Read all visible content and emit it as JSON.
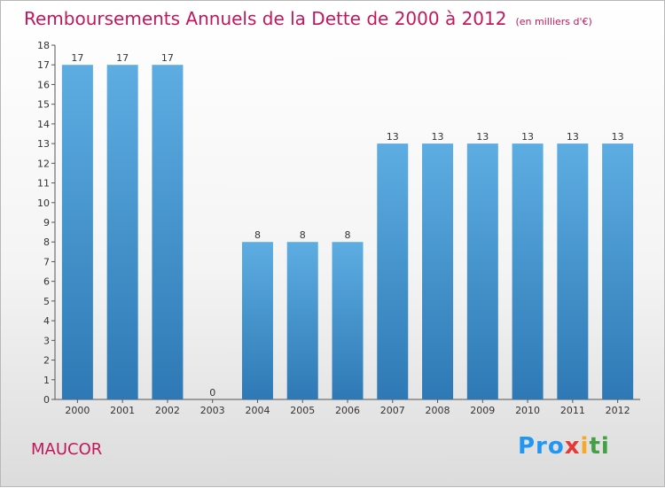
{
  "title": "Remboursements Annuels de la Dette de 2000 à 2012",
  "unit": "(en milliers d'€)",
  "commune": "MAUCOR",
  "brand": [
    "Pro",
    "x",
    "i",
    "ti"
  ],
  "colors": {
    "title": "#c2185b",
    "bar_top": "#5dade2",
    "bar_bottom": "#2e79b5"
  },
  "chart_data": {
    "type": "bar",
    "categories": [
      "2000",
      "2001",
      "2002",
      "2003",
      "2004",
      "2005",
      "2006",
      "2007",
      "2008",
      "2009",
      "2010",
      "2011",
      "2012"
    ],
    "values": [
      17,
      17,
      17,
      0,
      8,
      8,
      8,
      13,
      13,
      13,
      13,
      13,
      13
    ],
    "value_labels": [
      "17",
      "17",
      "17",
      "0",
      "8",
      "8",
      "8",
      "13",
      "13",
      "13",
      "13",
      "13",
      "13"
    ],
    "title": "Remboursements Annuels de la Dette de 2000 à 2012",
    "subtitle": "(en milliers d'€)",
    "ylim": [
      0,
      18
    ],
    "y_ticks": [
      "0",
      "1",
      "2",
      "3",
      "4",
      "5",
      "6",
      "7",
      "8",
      "9",
      "10",
      "11",
      "12",
      "13",
      "14",
      "15",
      "16",
      "17",
      "18"
    ],
    "grid": false
  }
}
